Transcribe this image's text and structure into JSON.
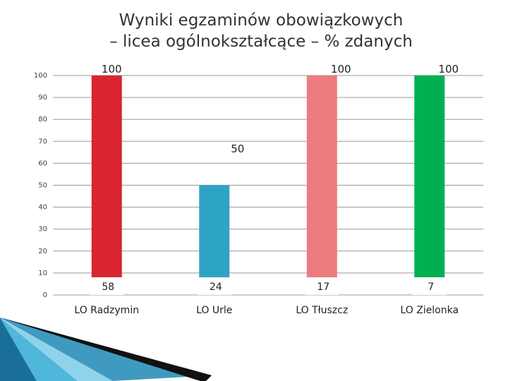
{
  "title_line1": "Wyniki egzaminów obowiązkowych",
  "title_line2": "– licea ogólnokształcące – % zdanych",
  "chart_data": {
    "type": "bar",
    "title": "Wyniki egzaminów obowiązkowych – licea ogólnokształcące – % zdanych",
    "categories": [
      "LO Radzymin",
      "LO Urle",
      "LO Tłuszcz",
      "LO Zielonka"
    ],
    "values": [
      100,
      50,
      100,
      100
    ],
    "value_labels": [
      "100",
      "50",
      "100",
      "100"
    ],
    "counts": [
      "58",
      "24",
      "17",
      "7"
    ],
    "colors": [
      "#d9252f",
      "#2ea4c4",
      "#ec7a7e",
      "#00b050"
    ],
    "ylim": [
      0,
      100
    ],
    "yticks": [
      0,
      10,
      20,
      30,
      40,
      50,
      60,
      70,
      80,
      90,
      100
    ],
    "xlabel": "",
    "ylabel": "",
    "grid": true,
    "legend": "none"
  }
}
